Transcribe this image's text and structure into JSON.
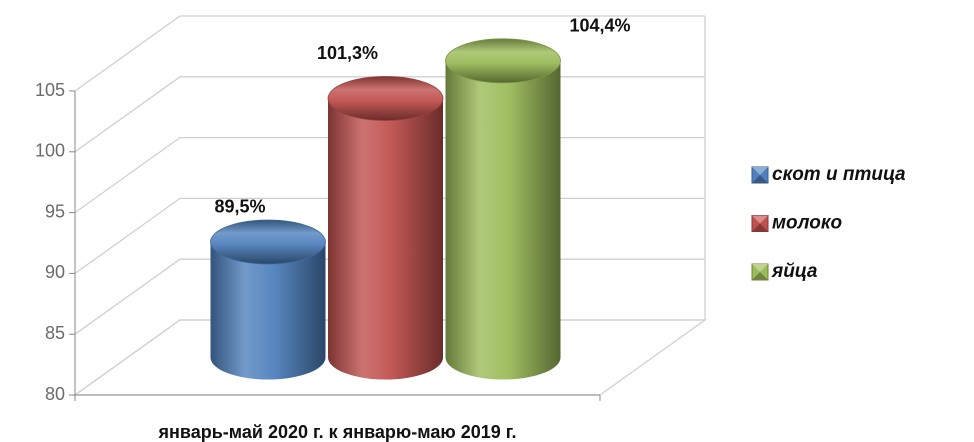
{
  "chart_data": {
    "type": "bar3d",
    "categories": [
      "январь-май 2020 г. к  январю-маю 2019 г."
    ],
    "series": [
      {
        "name": "скот и птица",
        "color": "#4f81bd",
        "values": [
          89.5
        ],
        "value_labels": [
          "89,5%"
        ]
      },
      {
        "name": "молоко",
        "color": "#c0504d",
        "values": [
          101.3
        ],
        "value_labels": [
          "101,3%"
        ]
      },
      {
        "name": "яйца",
        "color": "#9bbb59",
        "values": [
          104.4
        ],
        "value_labels": [
          "104,4%"
        ]
      }
    ],
    "ylim": [
      80,
      105
    ],
    "yticks": [
      80,
      85,
      90,
      95,
      100,
      105
    ],
    "grid": true,
    "legend": "right"
  }
}
